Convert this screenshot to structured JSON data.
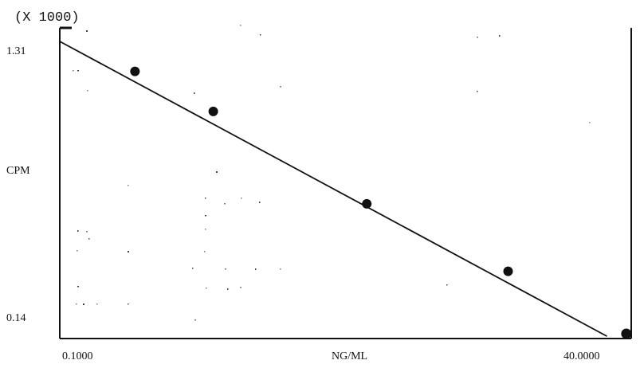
{
  "chart_data": {
    "type": "scatter",
    "multiplier_label": "(X 1000)",
    "ylabel": "CPM",
    "xlabel": "NG/ML",
    "y_tick_labels": [
      "1.31",
      "0.14"
    ],
    "x_tick_labels": [
      "0.1000",
      "40.0000"
    ],
    "ylim": [
      0.14,
      1.31
    ],
    "xlim": [
      0.1,
      40.0
    ],
    "x_scale": "log",
    "grid": false,
    "points": [
      {
        "x": 0.22,
        "y": 1.19
      },
      {
        "x": 0.5,
        "y": 1.03
      },
      {
        "x": 2.5,
        "y": 0.66
      },
      {
        "x": 11.0,
        "y": 0.39
      },
      {
        "x": 38.0,
        "y": 0.14
      }
    ],
    "fit_line": {
      "x": [
        0.1,
        31.0
      ],
      "y": [
        1.31,
        0.13
      ]
    },
    "colors": {
      "ink": "#111111",
      "background": "#ffffff"
    }
  }
}
